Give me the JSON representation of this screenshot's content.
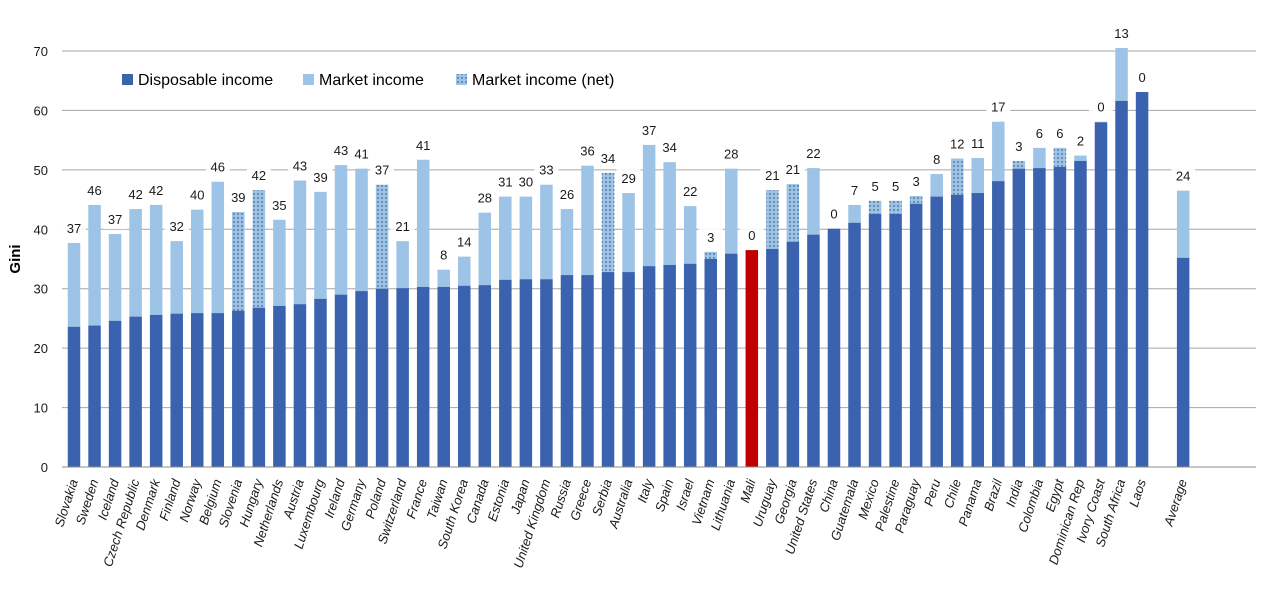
{
  "chart_data": {
    "type": "bar",
    "stacked": true,
    "title": "",
    "xlabel": "",
    "ylabel": "Gini",
    "ylim": [
      0,
      70
    ],
    "yticks": [
      0,
      10,
      20,
      30,
      40,
      50,
      60,
      70
    ],
    "grid": true,
    "legend_position": "top-left",
    "legend": [
      {
        "name": "Disposable income",
        "color": "#3A62AE",
        "pattern": "solid"
      },
      {
        "name": "Market income",
        "color": "#9DC3E6",
        "pattern": "solid"
      },
      {
        "name": "Market income (net)",
        "color": "#9DC3E6",
        "pattern": "dotted"
      }
    ],
    "highlight_color": "#C00000",
    "categories": [
      "Slovakia",
      "Sweden",
      "Iceland",
      "Czech Republic",
      "Denmark",
      "Finland",
      "Norway",
      "Belgium",
      "Slovenia",
      "Hungary",
      "Netherlands",
      "Austria",
      "Luxembourg",
      "Ireland",
      "Germany",
      "Poland",
      "Switzerland",
      "France",
      "Taiwan",
      "South Korea",
      "Canada",
      "Estonia",
      "Japan",
      "United Kingdom",
      "Russia",
      "Greece",
      "Serbia",
      "Australia",
      "Italy",
      "Spain",
      "Israel",
      "Vietnam",
      "Lithuania",
      "Mali",
      "Uruguay",
      "Georgia",
      "United States",
      "China",
      "Guatemala",
      "Mexico",
      "Palestine",
      "Paraguay",
      "Peru",
      "Chile",
      "Panama",
      "Brazil",
      "India",
      "Colombia",
      "Egypt",
      "Dominican Rep",
      "Ivory Coast",
      "South Africa",
      "Laos",
      "",
      "Average"
    ],
    "series": [
      {
        "name": "Disposable income",
        "values": [
          23.6,
          23.8,
          24.6,
          25.3,
          25.6,
          25.8,
          25.9,
          25.9,
          26.3,
          26.8,
          27.1,
          27.4,
          28.3,
          29.0,
          29.6,
          30.0,
          30.1,
          30.3,
          30.3,
          30.5,
          30.6,
          31.5,
          31.6,
          31.6,
          32.3,
          32.3,
          32.8,
          32.8,
          33.8,
          34.0,
          34.2,
          35.0,
          35.9,
          36.5,
          36.7,
          37.9,
          39.1,
          40.1,
          41.1,
          42.6,
          42.6,
          44.3,
          45.5,
          45.8,
          46.1,
          48.1,
          50.2,
          50.3,
          50.5,
          51.5,
          58.0,
          61.6,
          63.1,
          null,
          35.2
        ]
      },
      {
        "name": "Market income",
        "values": [
          37.7,
          44.1,
          39.2,
          43.4,
          44.1,
          38.0,
          43.3,
          48.0,
          42.9,
          46.6,
          41.6,
          48.2,
          46.3,
          50.8,
          50.2,
          47.5,
          38.0,
          51.7,
          33.2,
          35.4,
          42.8,
          45.5,
          45.5,
          47.5,
          43.4,
          50.7,
          49.5,
          46.1,
          54.2,
          51.3,
          43.9,
          36.2,
          50.2,
          36.5,
          46.6,
          47.6,
          50.3,
          40.1,
          44.1,
          44.8,
          44.8,
          45.6,
          49.3,
          51.9,
          52.0,
          58.1,
          51.5,
          53.7,
          53.7,
          52.4,
          58.1,
          70.5,
          63.1,
          null,
          46.5
        ]
      }
    ],
    "market_income_type": [
      "gross",
      "gross",
      "gross",
      "gross",
      "gross",
      "gross",
      "gross",
      "gross",
      "net",
      "net",
      "gross",
      "gross",
      "gross",
      "gross",
      "gross",
      "net",
      "gross",
      "gross",
      "gross",
      "gross",
      "gross",
      "gross",
      "gross",
      "gross",
      "gross",
      "gross",
      "net",
      "gross",
      "gross",
      "gross",
      "gross",
      "net",
      "gross",
      "gross",
      "net",
      "net",
      "gross",
      "gross",
      "gross",
      "net",
      "net",
      "net",
      "gross",
      "net",
      "gross",
      "gross",
      "net",
      "gross",
      "net",
      "gross",
      "gross",
      "gross",
      "gross",
      null,
      "gross"
    ],
    "highlight": [
      "Mali"
    ],
    "data_labels": [
      "37",
      "46",
      "37",
      "42",
      "42",
      "32",
      "40",
      "46",
      "39",
      "42",
      "35",
      "43",
      "39",
      "43",
      "41",
      "37",
      "21",
      "41",
      "8",
      "14",
      "28",
      "31",
      "30",
      "33",
      "26",
      "36",
      "34",
      "29",
      "37",
      "34",
      "22",
      "3",
      "28",
      "0",
      "21",
      "21",
      "22",
      "0",
      "7",
      "5",
      "5",
      "3",
      "8",
      "12",
      "11",
      "17",
      "3",
      "6",
      "6",
      "2",
      "0",
      "13",
      "0",
      "",
      "24"
    ]
  }
}
